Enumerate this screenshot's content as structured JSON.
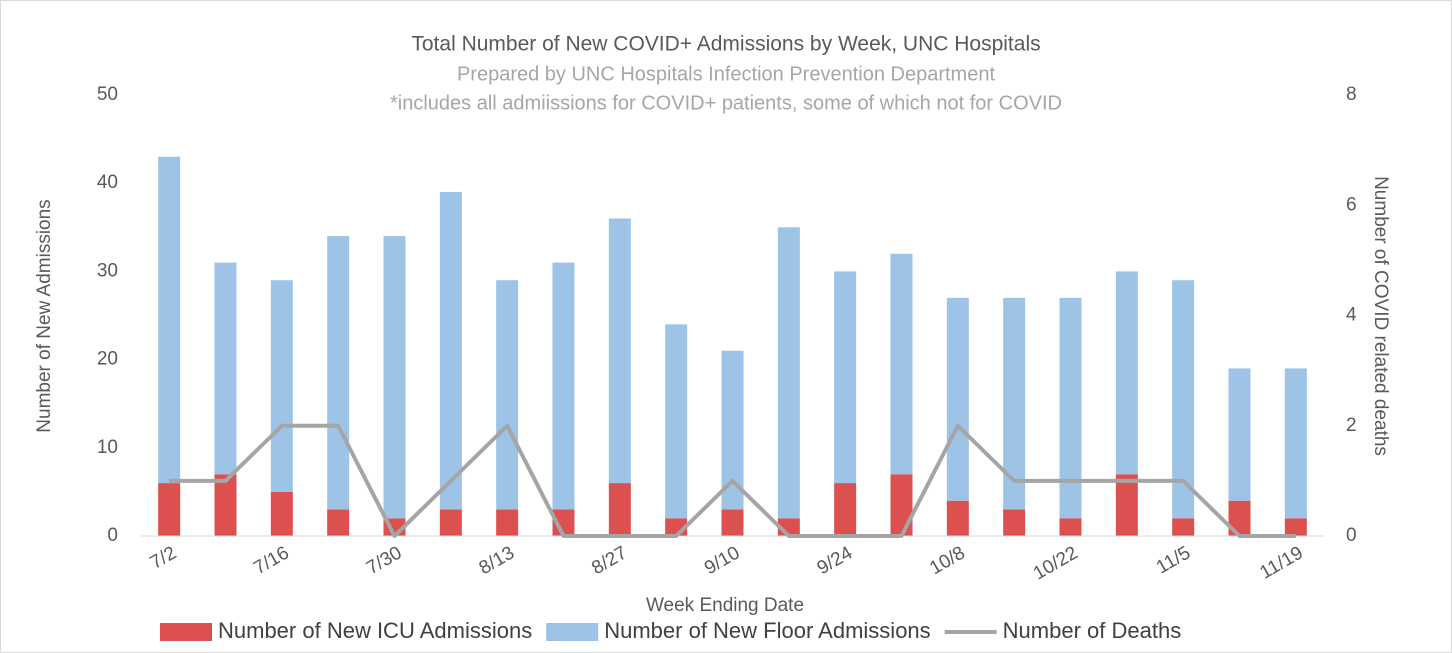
{
  "chart_data": {
    "type": "bar",
    "stacked": true,
    "title": "Total Number of New COVID+ Admissions by Week, UNC Hospitals",
    "subtitle": "Prepared by UNC Hospitals Infection Prevention Department",
    "note": "*includes all admiissions for COVID+ patients, some of which not for COVID",
    "x_label": "Week Ending Date",
    "y_label": "Number of New Admissions",
    "y2_label": "Number of COVID related deaths",
    "categories": [
      "7/2",
      null,
      "7/16",
      null,
      "7/30",
      null,
      "8/13",
      null,
      "8/27",
      null,
      "9/10",
      null,
      "9/24",
      null,
      "10/8",
      null,
      "10/22",
      null,
      "11/5",
      null,
      "11/19"
    ],
    "series": [
      {
        "name": "Number of New ICU Admissions",
        "type": "bar",
        "color": "#dc5050",
        "values": [
          6,
          7,
          5,
          3,
          2,
          3,
          3,
          3,
          6,
          2,
          3,
          2,
          6,
          7,
          4,
          3,
          2,
          7,
          2,
          4,
          2
        ]
      },
      {
        "name": "Number of New Floor Admissions",
        "type": "bar",
        "color": "#9dc3e6",
        "values": [
          37,
          24,
          24,
          31,
          32,
          36,
          26,
          28,
          30,
          22,
          18,
          33,
          24,
          25,
          23,
          24,
          25,
          23,
          27,
          15,
          17
        ]
      },
      {
        "name": "Number of Deaths",
        "type": "line",
        "axis": "y2",
        "color": "#a5a5a5",
        "values": [
          1,
          1,
          2,
          2,
          0,
          1,
          2,
          0,
          0,
          0,
          1,
          0,
          0,
          0,
          2,
          1,
          1,
          1,
          1,
          0,
          0
        ]
      }
    ],
    "ylim": [
      0,
      50
    ],
    "yticks": [
      0,
      10,
      20,
      30,
      40,
      50
    ],
    "y2lim": [
      0,
      8
    ],
    "y2ticks": [
      0,
      2,
      4,
      6,
      8
    ],
    "grid": false,
    "legend": "bottom"
  }
}
